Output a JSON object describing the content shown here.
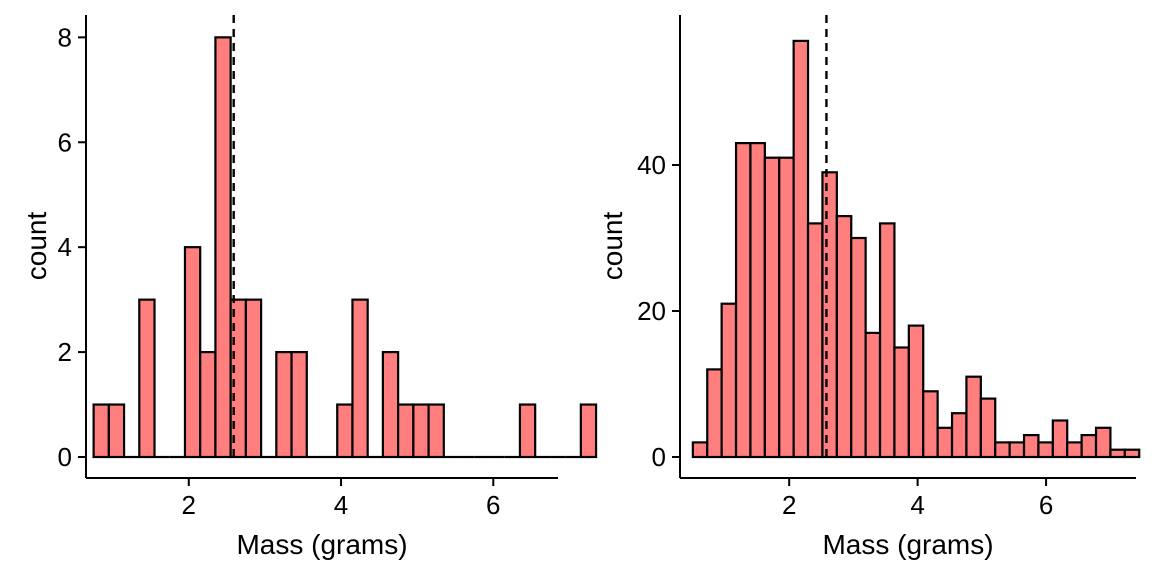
{
  "chart_data": [
    {
      "type": "bar",
      "subtype": "histogram",
      "xlabel": "Mass (grams)",
      "ylabel": "count",
      "xlim": [
        0.65,
        6.85
      ],
      "ylim": [
        0,
        8.35
      ],
      "xticks": [
        2,
        4,
        6
      ],
      "yticks": [
        0,
        2,
        4,
        6,
        8
      ],
      "bin_start": 0.75,
      "bin_width": 0.2,
      "counts": [
        1,
        1,
        0,
        3,
        0,
        0,
        4,
        2,
        8,
        3,
        3,
        0,
        2,
        2,
        0,
        0,
        1,
        3,
        0,
        2,
        1,
        1,
        1,
        0,
        0,
        0,
        0,
        0,
        1,
        0,
        0,
        0,
        1
      ],
      "mean_line": 2.59,
      "fill": "#ff7f7f"
    },
    {
      "type": "bar",
      "subtype": "histogram",
      "xlabel": "Mass (grams)",
      "ylabel": "count",
      "xlim": [
        0.3,
        7.4
      ],
      "ylim": [
        0,
        60
      ],
      "xticks": [
        2,
        4,
        6
      ],
      "yticks": [
        0,
        20,
        40
      ],
      "bin_start": 0.5,
      "bin_width": 0.2242,
      "counts": [
        2,
        12,
        21,
        43,
        43,
        41,
        41,
        57,
        32,
        39,
        33,
        30,
        17,
        32,
        15,
        18,
        9,
        4,
        6,
        11,
        8,
        2,
        2,
        3,
        2,
        5,
        2,
        3,
        4,
        1,
        1
      ],
      "mean_line": 2.58,
      "fill": "#ff7f7f"
    }
  ]
}
